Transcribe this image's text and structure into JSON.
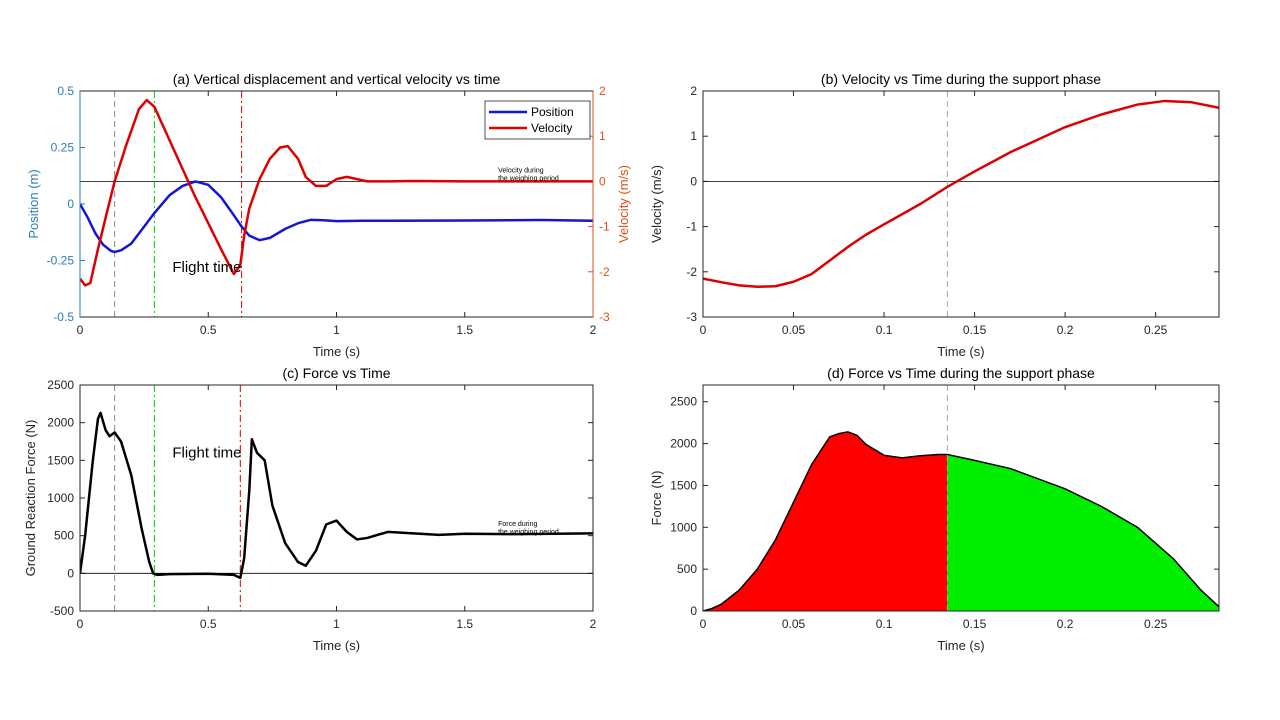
{
  "chart_data": [
    {
      "id": "a",
      "type": "line",
      "title": "(a) Vertical displacement and vertical velocity vs time",
      "xlabel": "Time (s)",
      "ylabel_left": "Position (m)",
      "ylabel_right": "Velocity (m/s)",
      "xlim": [
        0,
        2
      ],
      "ylim_left": [
        -0.5,
        0.5
      ],
      "ylim_right": [
        -3,
        2
      ],
      "xticks": [
        "0",
        "0.5",
        "1",
        "1.5",
        "2"
      ],
      "yticks_left": [
        "-0.5",
        "-0.25",
        "0",
        "0.25",
        "0.5"
      ],
      "yticks_right": [
        "-3",
        "-2",
        "-1",
        "0",
        "1",
        "2"
      ],
      "left_axis_color": "#2a7fb8",
      "right_axis_color": "#d95319",
      "legend_position": "top-right",
      "series": [
        {
          "name": "Position",
          "axis": "left",
          "color": "#1515d6",
          "x": [
            0,
            0.03,
            0.06,
            0.09,
            0.12,
            0.135,
            0.16,
            0.2,
            0.25,
            0.29,
            0.35,
            0.4,
            0.45,
            0.5,
            0.55,
            0.6,
            0.63,
            0.66,
            0.7,
            0.74,
            0.8,
            0.85,
            0.9,
            0.95,
            1.0,
            1.1,
            1.2,
            1.5,
            1.8,
            2.0
          ],
          "y": [
            0.0,
            -0.06,
            -0.13,
            -0.18,
            -0.207,
            -0.212,
            -0.205,
            -0.175,
            -0.1,
            -0.04,
            0.04,
            0.08,
            0.1,
            0.085,
            0.03,
            -0.05,
            -0.1,
            -0.14,
            -0.16,
            -0.15,
            -0.11,
            -0.085,
            -0.07,
            -0.072,
            -0.076,
            -0.074,
            -0.074,
            -0.073,
            -0.071,
            -0.074
          ]
        },
        {
          "name": "Velocity",
          "axis": "right",
          "color": "#dd0000",
          "x": [
            0,
            0.02,
            0.04,
            0.07,
            0.1,
            0.135,
            0.18,
            0.23,
            0.26,
            0.29,
            0.35,
            0.45,
            0.55,
            0.6,
            0.625,
            0.64,
            0.66,
            0.7,
            0.74,
            0.78,
            0.81,
            0.85,
            0.88,
            0.92,
            0.96,
            1.0,
            1.04,
            1.08,
            1.12,
            1.2,
            1.3,
            1.5,
            1.8,
            2.0
          ],
          "y": [
            -2.15,
            -2.3,
            -2.25,
            -1.5,
            -0.8,
            0.0,
            0.8,
            1.6,
            1.8,
            1.65,
            0.9,
            -0.35,
            -1.5,
            -2.05,
            -1.85,
            -1.2,
            -0.6,
            0.05,
            0.5,
            0.75,
            0.78,
            0.5,
            0.1,
            -0.1,
            -0.1,
            0.05,
            0.1,
            0.05,
            0.0,
            0.0,
            0.01,
            0.0,
            0.0,
            0.0
          ]
        }
      ],
      "vlines": [
        {
          "x": 0.135,
          "color": "#888888",
          "style": "dash"
        },
        {
          "x": 0.29,
          "color": "#00cc00",
          "style": "dashdot"
        },
        {
          "x": 0.63,
          "color": "#dd0000",
          "style": "dashdot"
        }
      ],
      "hline_right": 0,
      "annotations": [
        {
          "text": "Flight time",
          "x": 0.36,
          "y_right": -2.0
        },
        {
          "lines": [
            "Velocity during",
            "the weighing period"
          ],
          "x": 1.63,
          "y_right": 0.2
        }
      ]
    },
    {
      "id": "b",
      "type": "line",
      "title": "(b) Velocity vs Time during the support phase",
      "xlabel": "Time (s)",
      "ylabel": "Velocity (m/s)",
      "xlim": [
        0,
        0.285
      ],
      "ylim": [
        -3,
        2
      ],
      "xticks": [
        "0",
        "0.05",
        "0.1",
        "0.15",
        "0.2",
        "0.25"
      ],
      "yticks": [
        "-3",
        "-2",
        "-1",
        "0",
        "1",
        "2"
      ],
      "series": [
        {
          "color": "#dd0000",
          "x": [
            0,
            0.01,
            0.02,
            0.03,
            0.04,
            0.05,
            0.06,
            0.07,
            0.08,
            0.09,
            0.1,
            0.12,
            0.135,
            0.15,
            0.17,
            0.2,
            0.22,
            0.24,
            0.255,
            0.27,
            0.285
          ],
          "y": [
            -2.15,
            -2.23,
            -2.3,
            -2.33,
            -2.32,
            -2.22,
            -2.05,
            -1.75,
            -1.45,
            -1.18,
            -0.95,
            -0.5,
            -0.12,
            0.22,
            0.65,
            1.2,
            1.48,
            1.7,
            1.78,
            1.75,
            1.63
          ]
        }
      ],
      "vlines": [
        {
          "x": 0.135,
          "color": "#aaaaaa",
          "style": "dash"
        }
      ],
      "hline": 0
    },
    {
      "id": "c",
      "type": "line",
      "title": "(c) Force vs Time",
      "xlabel": "Time (s)",
      "ylabel": "Ground Reaction Force (N)",
      "xlim": [
        0,
        2
      ],
      "ylim": [
        -500,
        2500
      ],
      "xticks": [
        "0",
        "0.5",
        "1",
        "1.5",
        "2"
      ],
      "yticks": [
        "-500",
        "0",
        "500",
        "1000",
        "1500",
        "2000",
        "2500"
      ],
      "series": [
        {
          "color": "#000000",
          "x": [
            0,
            0.02,
            0.05,
            0.07,
            0.08,
            0.1,
            0.115,
            0.135,
            0.16,
            0.2,
            0.24,
            0.27,
            0.285,
            0.3,
            0.35,
            0.5,
            0.6,
            0.625,
            0.64,
            0.66,
            0.67,
            0.69,
            0.72,
            0.75,
            0.8,
            0.85,
            0.88,
            0.92,
            0.96,
            1.0,
            1.04,
            1.08,
            1.12,
            1.2,
            1.3,
            1.4,
            1.5,
            1.7,
            2.0
          ],
          "y": [
            0,
            500,
            1500,
            2050,
            2130,
            1900,
            1820,
            1870,
            1750,
            1300,
            600,
            150,
            0,
            -20,
            -10,
            -5,
            -20,
            -60,
            200,
            1100,
            1780,
            1600,
            1500,
            900,
            400,
            150,
            100,
            300,
            650,
            700,
            550,
            450,
            470,
            550,
            530,
            510,
            525,
            520,
            530
          ]
        }
      ],
      "vlines": [
        {
          "x": 0.135,
          "color": "#888888",
          "style": "dash"
        },
        {
          "x": 0.29,
          "color": "#00cc00",
          "style": "dashdot"
        },
        {
          "x": 0.625,
          "color": "#dd0000",
          "style": "dashdot"
        }
      ],
      "hline": 0,
      "annotations": [
        {
          "text": "Flight time",
          "x": 0.36,
          "y": 1540
        },
        {
          "lines": [
            "Force during",
            "the weighing period"
          ],
          "x": 1.63,
          "y": 630
        }
      ]
    },
    {
      "id": "d",
      "type": "area",
      "title": "(d) Force vs Time during the support phase",
      "xlabel": "Time (s)",
      "ylabel": "Force (N)",
      "xlim": [
        0,
        0.285
      ],
      "ylim": [
        0,
        2700
      ],
      "xticks": [
        "0",
        "0.05",
        "0.1",
        "0.15",
        "0.2",
        "0.25"
      ],
      "yticks": [
        "0",
        "500",
        "1000",
        "1500",
        "2000",
        "2500"
      ],
      "split_x": 0.135,
      "fill_colors": [
        "#ff0000",
        "#00ee00"
      ],
      "line_color": "#000000",
      "series": [
        {
          "x": [
            0,
            0.005,
            0.01,
            0.02,
            0.03,
            0.04,
            0.05,
            0.06,
            0.07,
            0.075,
            0.08,
            0.085,
            0.09,
            0.1,
            0.11,
            0.12,
            0.13,
            0.135,
            0.15,
            0.17,
            0.2,
            0.22,
            0.24,
            0.26,
            0.275,
            0.285
          ],
          "y": [
            0,
            30,
            80,
            250,
            500,
            850,
            1300,
            1750,
            2080,
            2120,
            2140,
            2100,
            1990,
            1860,
            1830,
            1855,
            1870,
            1870,
            1800,
            1700,
            1460,
            1250,
            1000,
            620,
            250,
            50
          ]
        }
      ],
      "vlines": [
        {
          "x": 0.135,
          "color": "#aaaaaa",
          "style": "dash"
        }
      ]
    }
  ]
}
